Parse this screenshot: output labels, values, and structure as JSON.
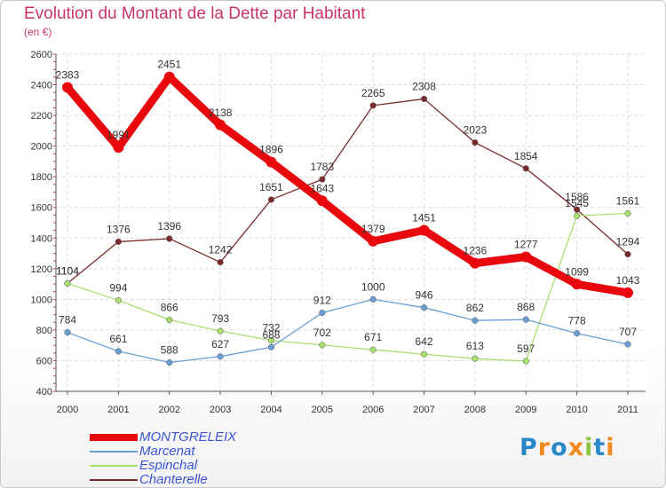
{
  "header": {
    "title": "Evolution du Montant de la Dette par Habitant",
    "subtitle": "(en €)"
  },
  "logo": {
    "text": "Proxiti",
    "letter_colors": [
      "#2b88c8",
      "#f08a1d",
      "#2b88c8",
      "#f08a1d",
      "#8cc63e",
      "#2b88c8",
      "#f08a1d"
    ]
  },
  "chart_data": {
    "type": "line",
    "title": "Evolution du Montant de la Dette par Habitant",
    "subtitle": "(en €)",
    "xlabel": "",
    "ylabel": "",
    "x": [
      "2000",
      "2001",
      "2002",
      "2003",
      "2004",
      "2005",
      "2006",
      "2007",
      "2008",
      "2009",
      "2010",
      "2011"
    ],
    "ylim": [
      400,
      2600
    ],
    "yticks": [
      400,
      600,
      800,
      1000,
      1200,
      1400,
      1600,
      1800,
      2000,
      2200,
      2400,
      2600
    ],
    "grid": true,
    "legend_position": "bottom-left",
    "series": [
      {
        "name": "Chanterelle",
        "color": "#7a2a2a",
        "values": [
          1104,
          1376,
          1396,
          1242,
          1651,
          1783,
          2265,
          2308,
          2023,
          1854,
          1586,
          1294
        ],
        "labels": [
          "1104",
          "1376",
          "1396",
          "1242",
          "1651",
          "1783",
          "2265",
          "2308",
          "2023",
          "1854",
          "1586",
          "1294"
        ]
      },
      {
        "name": "Espinchal",
        "color": "#a8e06e",
        "values": [
          1104,
          994,
          866,
          793,
          732,
          702,
          671,
          642,
          613,
          597,
          1545,
          1561
        ],
        "labels": [
          "1104",
          "994",
          "866",
          "793",
          "732",
          "702",
          "671",
          "642",
          "613",
          "597",
          "1545",
          "1561"
        ]
      },
      {
        "name": "Marcenat",
        "color": "#6a9fd4",
        "values": [
          784,
          661,
          588,
          627,
          688,
          912,
          1000,
          946,
          862,
          868,
          778,
          707
        ],
        "labels": [
          "784",
          "661",
          "588",
          "627",
          "688",
          "912",
          "1000",
          "946",
          "862",
          "868",
          "778",
          "707"
        ]
      },
      {
        "name": "MONTGRELEIX",
        "color": "#e8070c",
        "values": [
          2383,
          1991,
          2451,
          2138,
          1896,
          1643,
          1379,
          1451,
          1236,
          1277,
          1099,
          1043
        ],
        "labels": [
          "2383",
          "1991",
          "2451",
          "2138",
          "1896",
          "1643",
          "1379",
          "1451",
          "1236",
          "1277",
          "1099",
          "1043"
        ]
      }
    ],
    "legend": [
      {
        "name": "MONTGRELEIX",
        "color": "#e8070c"
      },
      {
        "name": "Marcenat",
        "color": "#6a9fd4"
      },
      {
        "name": "Espinchal",
        "color": "#a8e06e"
      },
      {
        "name": "Chanterelle",
        "color": "#7a2a2a"
      }
    ]
  }
}
